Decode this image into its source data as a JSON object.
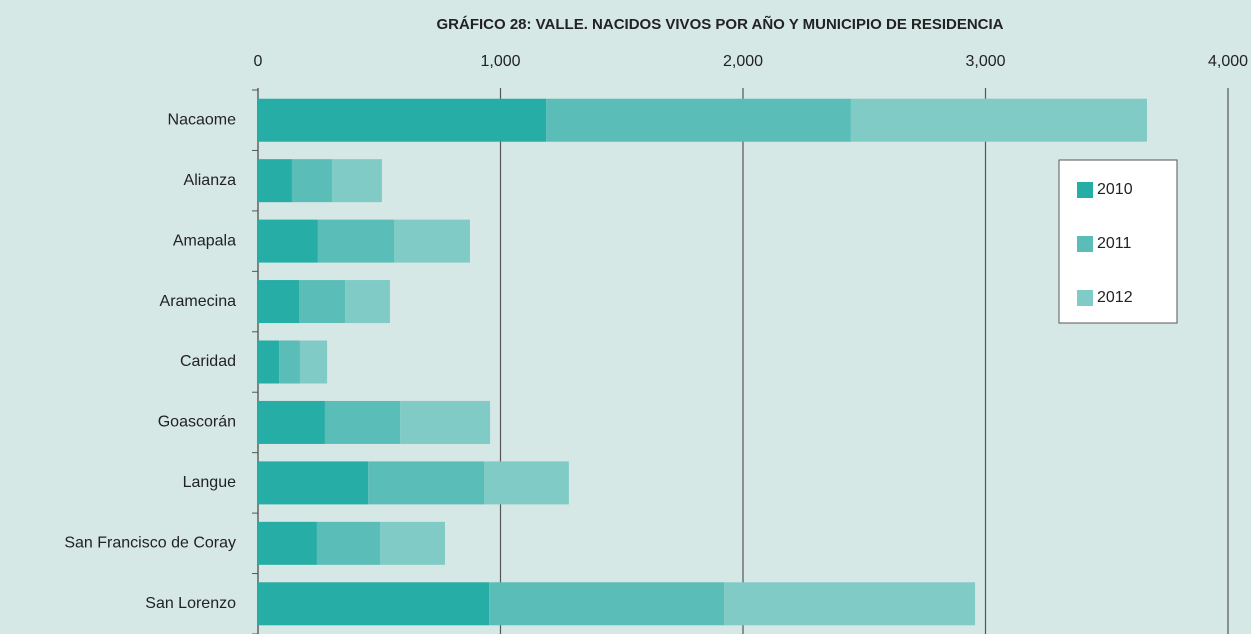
{
  "chart_data": {
    "type": "stacked_bar_horizontal",
    "title": "GRÁFICO 28: VALLE. NACIDOS VIVOS POR AÑO Y MUNICIPIO DE RESIDENCIA",
    "categories": [
      "Nacaome",
      "Alianza",
      "Amapala",
      "Aramecina",
      "Caridad",
      "Goascorán",
      "Langue",
      "San Francisco de Coray",
      "San Lorenzo"
    ],
    "series": [
      {
        "name": "2010",
        "color": "#26ada5",
        "values": [
          1188,
          140,
          247,
          169,
          87,
          276,
          454,
          243,
          953
        ]
      },
      {
        "name": "2011",
        "color": "#5bbdb8",
        "values": [
          1257,
          165,
          314,
          190,
          86,
          310,
          478,
          260,
          969
        ]
      },
      {
        "name": "2012",
        "color": "#80cbc5",
        "values": [
          1221,
          206,
          313,
          185,
          112,
          371,
          350,
          268,
          1035
        ]
      }
    ],
    "xlim": [
      0,
      4000
    ],
    "xticks": [
      0,
      {
        "value": 1000,
        "label": "1,000"
      },
      {
        "value": 2000,
        "label": "2,000"
      },
      {
        "value": 3000,
        "label": "3,000"
      },
      {
        "value": 4000,
        "label": "4,000"
      }
    ],
    "grid": true,
    "legend": "right"
  }
}
